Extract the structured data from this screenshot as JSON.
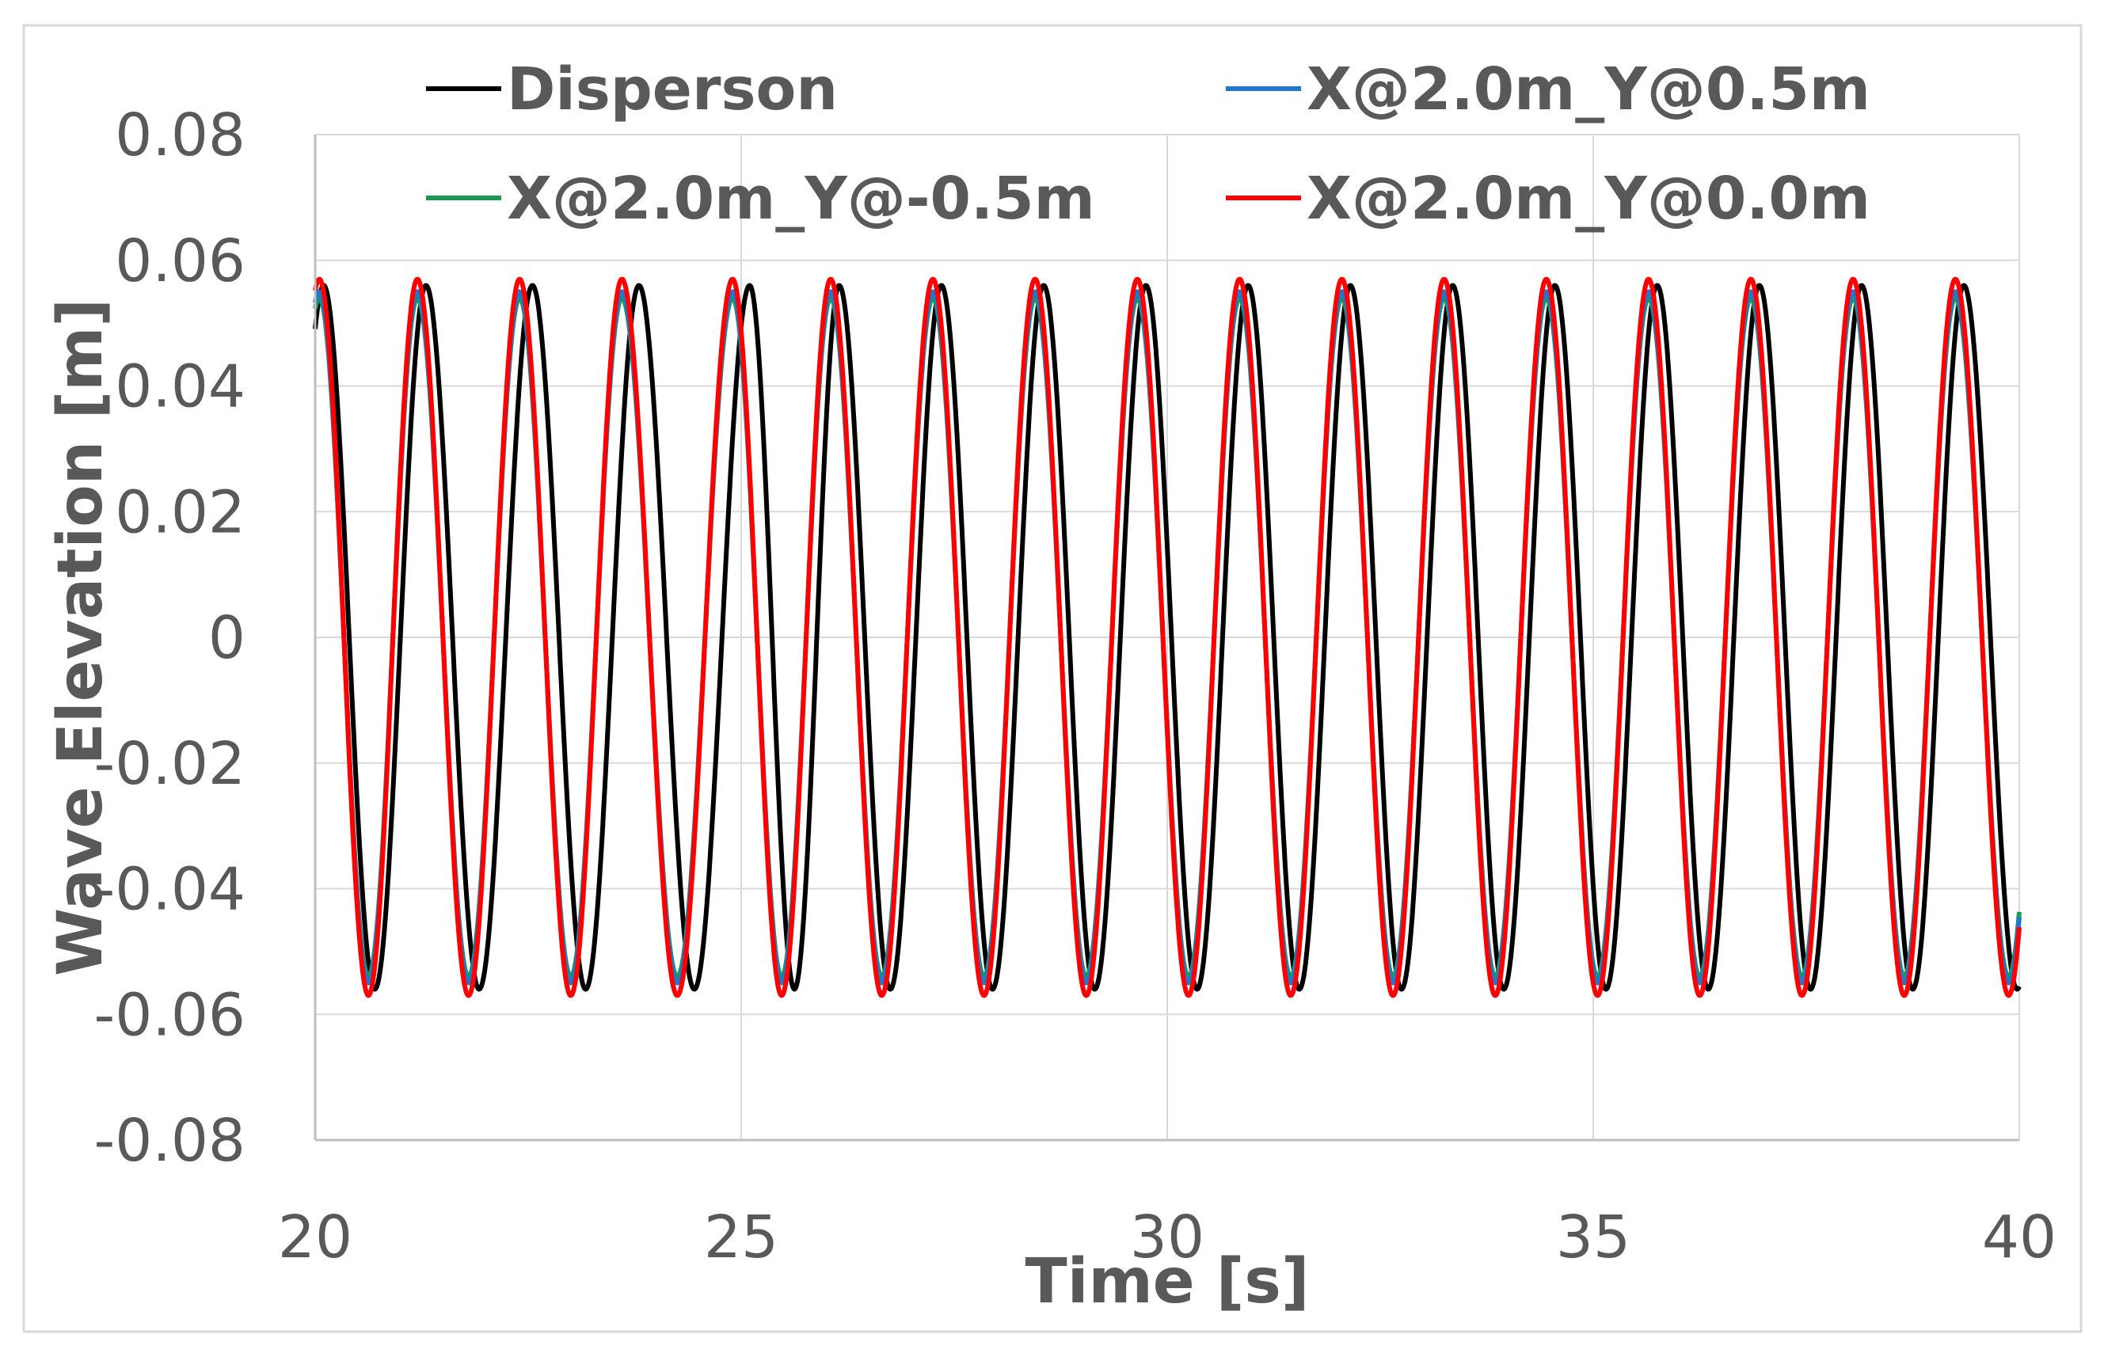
{
  "chart_data": {
    "type": "line",
    "title": "",
    "xlabel": "Time [s]",
    "ylabel": "Wave Elevation [m]",
    "xlim": [
      20,
      40
    ],
    "ylim": [
      -0.08,
      0.08
    ],
    "x_ticks": [
      "20",
      "25",
      "30",
      "35",
      "40"
    ],
    "y_ticks": [
      "0.08",
      "0.06",
      "0.04",
      "0.02",
      "0",
      "-0.02",
      "-0.04",
      "-0.06",
      "-0.08"
    ],
    "grid": true,
    "legend_position": "top",
    "wave_period_s": 1.25,
    "series": [
      {
        "name": "Disperson",
        "color": "#000000",
        "amplitude_m": 0.056,
        "crest_times_s": [
          20.1,
          21.3,
          22.55,
          23.8,
          25.1,
          26.15,
          27.35,
          28.55,
          29.75,
          30.95,
          32.15,
          33.35,
          34.55,
          35.75,
          36.95,
          38.15,
          39.35
        ]
      },
      {
        "name": "X@2.0m_Y@0.5m",
        "color": "#1f77d0",
        "amplitude_m": 0.055,
        "crest_times_s": [
          20.05,
          21.2,
          22.4,
          23.6,
          24.9,
          26.05,
          27.25,
          28.45,
          29.65,
          30.85,
          32.05,
          33.25,
          34.45,
          35.65,
          36.85,
          38.05,
          39.25
        ]
      },
      {
        "name": "X@2.0m_Y@-0.5m",
        "color": "#1a9a50",
        "amplitude_m": 0.054,
        "crest_times_s": [
          20.05,
          21.2,
          22.4,
          23.6,
          24.9,
          26.05,
          27.25,
          28.45,
          29.65,
          30.85,
          32.05,
          33.25,
          34.45,
          35.65,
          36.85,
          38.05,
          39.25
        ]
      },
      {
        "name": "X@2.0m_Y@0.0m",
        "color": "#ff0000",
        "amplitude_m": 0.057,
        "crest_times_s": [
          20.05,
          21.2,
          22.4,
          23.6,
          24.9,
          26.05,
          27.25,
          28.45,
          29.65,
          30.85,
          32.05,
          33.25,
          34.45,
          35.65,
          36.85,
          38.05,
          39.25
        ]
      }
    ]
  }
}
